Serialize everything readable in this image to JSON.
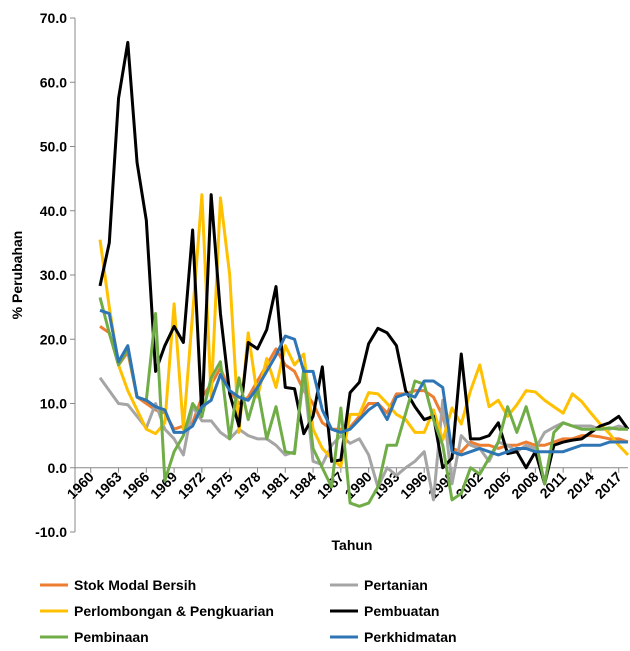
{
  "chart_data": {
    "type": "line",
    "ylabel": "% Perubahan",
    "xlabel": "Tahun",
    "x": [
      1961,
      1962,
      1963,
      1964,
      1965,
      1966,
      1967,
      1968,
      1969,
      1970,
      1971,
      1972,
      1973,
      1974,
      1975,
      1976,
      1977,
      1978,
      1979,
      1980,
      1981,
      1982,
      1983,
      1984,
      1985,
      1986,
      1987,
      1988,
      1989,
      1990,
      1991,
      1992,
      1993,
      1994,
      1995,
      1996,
      1997,
      1998,
      1999,
      2000,
      2001,
      2002,
      2003,
      2004,
      2005,
      2006,
      2007,
      2008,
      2009,
      2010,
      2011,
      2012,
      2013,
      2014,
      2015,
      2016,
      2017,
      2018
    ],
    "xlim": [
      1958.3,
      2018
    ],
    "xticks": [
      1960,
      1963,
      1966,
      1969,
      1972,
      1975,
      1978,
      1981,
      1984,
      1987,
      1990,
      1993,
      1996,
      1999,
      2002,
      2005,
      2008,
      2011,
      2014,
      2017
    ],
    "ylim": [
      -10,
      70
    ],
    "yticks": [
      {
        "value": -10,
        "label": "-10.0"
      },
      {
        "value": 0,
        "label": "0.0"
      },
      {
        "value": 10,
        "label": "10.0"
      },
      {
        "value": 20,
        "label": "20.0"
      },
      {
        "value": 30,
        "label": "30.0"
      },
      {
        "value": 40,
        "label": "40.0"
      },
      {
        "value": 50,
        "label": "50.0"
      },
      {
        "value": 60,
        "label": "60.0"
      },
      {
        "value": 70,
        "label": "70.0"
      }
    ],
    "grid": false,
    "legend": "bottom",
    "series": [
      {
        "name": "Stok Modal Bersih",
        "color": "#ed7d31",
        "values": [
          22,
          21,
          16,
          18,
          11,
          10,
          9,
          8.5,
          6,
          6.5,
          7,
          11,
          13,
          15.5,
          12,
          10,
          11,
          13.5,
          16,
          18.5,
          16,
          15,
          12,
          10,
          7,
          6,
          6,
          6.3,
          8,
          10,
          10,
          8.5,
          11.5,
          11.5,
          12,
          12,
          11,
          8,
          3,
          2.5,
          4,
          3.5,
          3.5,
          3,
          3.5,
          3.5,
          4,
          3.5,
          3.5,
          4,
          4.5,
          4.5,
          5,
          5,
          4.8,
          4.5,
          4.5,
          4
        ]
      },
      {
        "name": "Pertanian",
        "color": "#a5a5a5",
        "values": [
          14,
          12,
          10,
          9.8,
          8,
          6.2,
          10,
          6,
          4.5,
          2,
          9.5,
          7.3,
          7.3,
          5.5,
          4.5,
          6,
          5,
          4.5,
          4.5,
          3.5,
          2,
          2.5,
          14.5,
          1,
          0.5,
          3.5,
          5,
          3.8,
          4.5,
          2,
          -3,
          0,
          -1.2,
          0,
          1,
          2.5,
          -5,
          10.5,
          -2.5,
          5,
          3.5,
          3,
          1,
          4,
          3.5,
          2.5,
          3.5,
          3,
          5.5,
          6.3,
          7,
          6.5,
          6.5,
          6.5,
          6,
          6,
          6.5,
          6
        ]
      },
      {
        "name": "Perlombongan & Pengkuarian",
        "color": "#ffc000",
        "values": [
          35.5,
          25,
          16,
          12,
          9,
          6,
          5.3,
          7,
          25.5,
          6,
          24,
          42.5,
          11,
          42,
          30,
          5.5,
          21,
          11,
          17,
          12.5,
          19,
          16,
          17.7,
          6,
          3,
          1.5,
          0.2,
          8.3,
          8.3,
          11.7,
          11.5,
          10,
          8.3,
          7.5,
          5.5,
          5.5,
          9,
          4.3,
          9.3,
          6.8,
          12,
          16,
          9.5,
          10.5,
          8,
          9.8,
          12,
          11.8,
          10.5,
          9.5,
          8.5,
          11.5,
          10.3,
          8.5,
          6.8,
          5.3,
          3.5,
          2
        ]
      },
      {
        "name": "Pembuatan",
        "color": "#000000",
        "values": [
          28.3,
          35,
          57.5,
          66.2,
          47.5,
          38.5,
          15,
          19,
          22,
          19.5,
          37,
          8,
          42.5,
          24,
          11.5,
          6.5,
          19.5,
          18.5,
          21.5,
          28.2,
          12.5,
          12.3,
          5.3,
          8,
          15.7,
          1,
          1.2,
          11.7,
          13.3,
          19.3,
          21.7,
          21,
          19,
          12,
          9.5,
          7.5,
          8,
          0,
          1.5,
          17.7,
          4.5,
          4.5,
          5,
          7,
          2.2,
          2.5,
          0,
          2.5,
          -2.5,
          3.5,
          4,
          4.3,
          4.5,
          5.5,
          6.5,
          7,
          8,
          6
        ]
      },
      {
        "name": "Pembinaan",
        "color": "#70ad47",
        "values": [
          26.5,
          21,
          16,
          18.5,
          11,
          10.5,
          24,
          -2,
          2.5,
          5,
          10,
          8,
          14,
          16.5,
          4.5,
          14,
          7.5,
          12.5,
          4.5,
          9.5,
          2.5,
          2.2,
          15.5,
          3,
          0,
          -3,
          9.3,
          -5.5,
          -6,
          -5.5,
          -3,
          3.5,
          3.5,
          8.5,
          13.5,
          13,
          7.5,
          3.5,
          -5,
          -4,
          0,
          -1,
          1.5,
          4,
          9.5,
          5.5,
          9.5,
          4.5,
          -2.5,
          5.5,
          7,
          6.5,
          6,
          6,
          6,
          6.2,
          6,
          6
        ]
      },
      {
        "name": "Perkhidmatan",
        "color": "#2e75b6",
        "values": [
          24.5,
          24,
          16.5,
          19,
          11,
          10.5,
          9.5,
          9,
          5.5,
          5.5,
          6.5,
          9.5,
          10.5,
          14.5,
          12,
          11,
          10.5,
          12.5,
          15,
          17.5,
          20.5,
          20,
          15,
          15,
          9,
          6,
          5.5,
          6,
          7.5,
          9,
          10,
          7.5,
          11,
          11.5,
          11,
          13.5,
          13.5,
          12.5,
          2.5,
          2,
          2.5,
          3,
          2.5,
          2,
          2.5,
          3,
          3,
          2.5,
          2.5,
          2.5,
          2.5,
          3,
          3.5,
          3.5,
          3.5,
          4,
          4,
          4
        ]
      }
    ]
  }
}
